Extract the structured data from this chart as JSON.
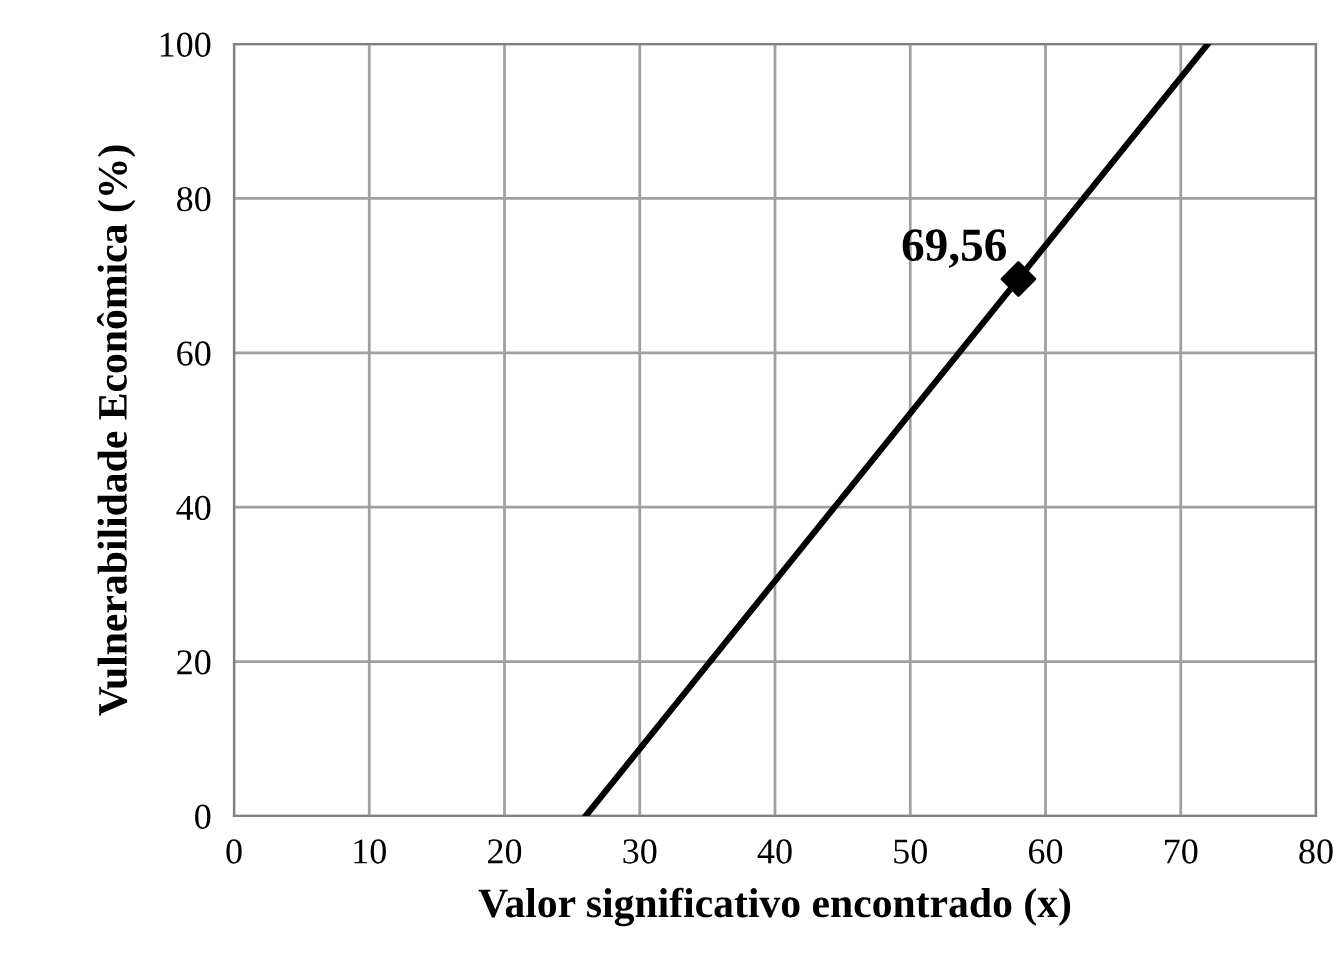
{
  "chart_data": {
    "type": "line",
    "xlabel": "Valor significativo encontrado (x)",
    "ylabel": "Vulnerabilidade Econômica (%)",
    "xlim": [
      0,
      80
    ],
    "xticks": [
      0,
      10,
      20,
      30,
      40,
      50,
      60,
      70,
      80
    ],
    "ylim": [
      0,
      100
    ],
    "yticks": [
      0,
      20,
      40,
      60,
      80,
      100
    ],
    "grid": true,
    "series": [
      {
        "x": [
          26,
          72
        ],
        "values": [
          0,
          100
        ],
        "color": "#000000",
        "marker": "none",
        "line_style": "solid"
      },
      {
        "type": "scatter",
        "x": [
          58
        ],
        "values": [
          69.56
        ],
        "color": "#000000",
        "marker": "diamond"
      }
    ],
    "annotations": [
      {
        "text": "69,56",
        "x": 58,
        "y": 69.56
      }
    ]
  }
}
